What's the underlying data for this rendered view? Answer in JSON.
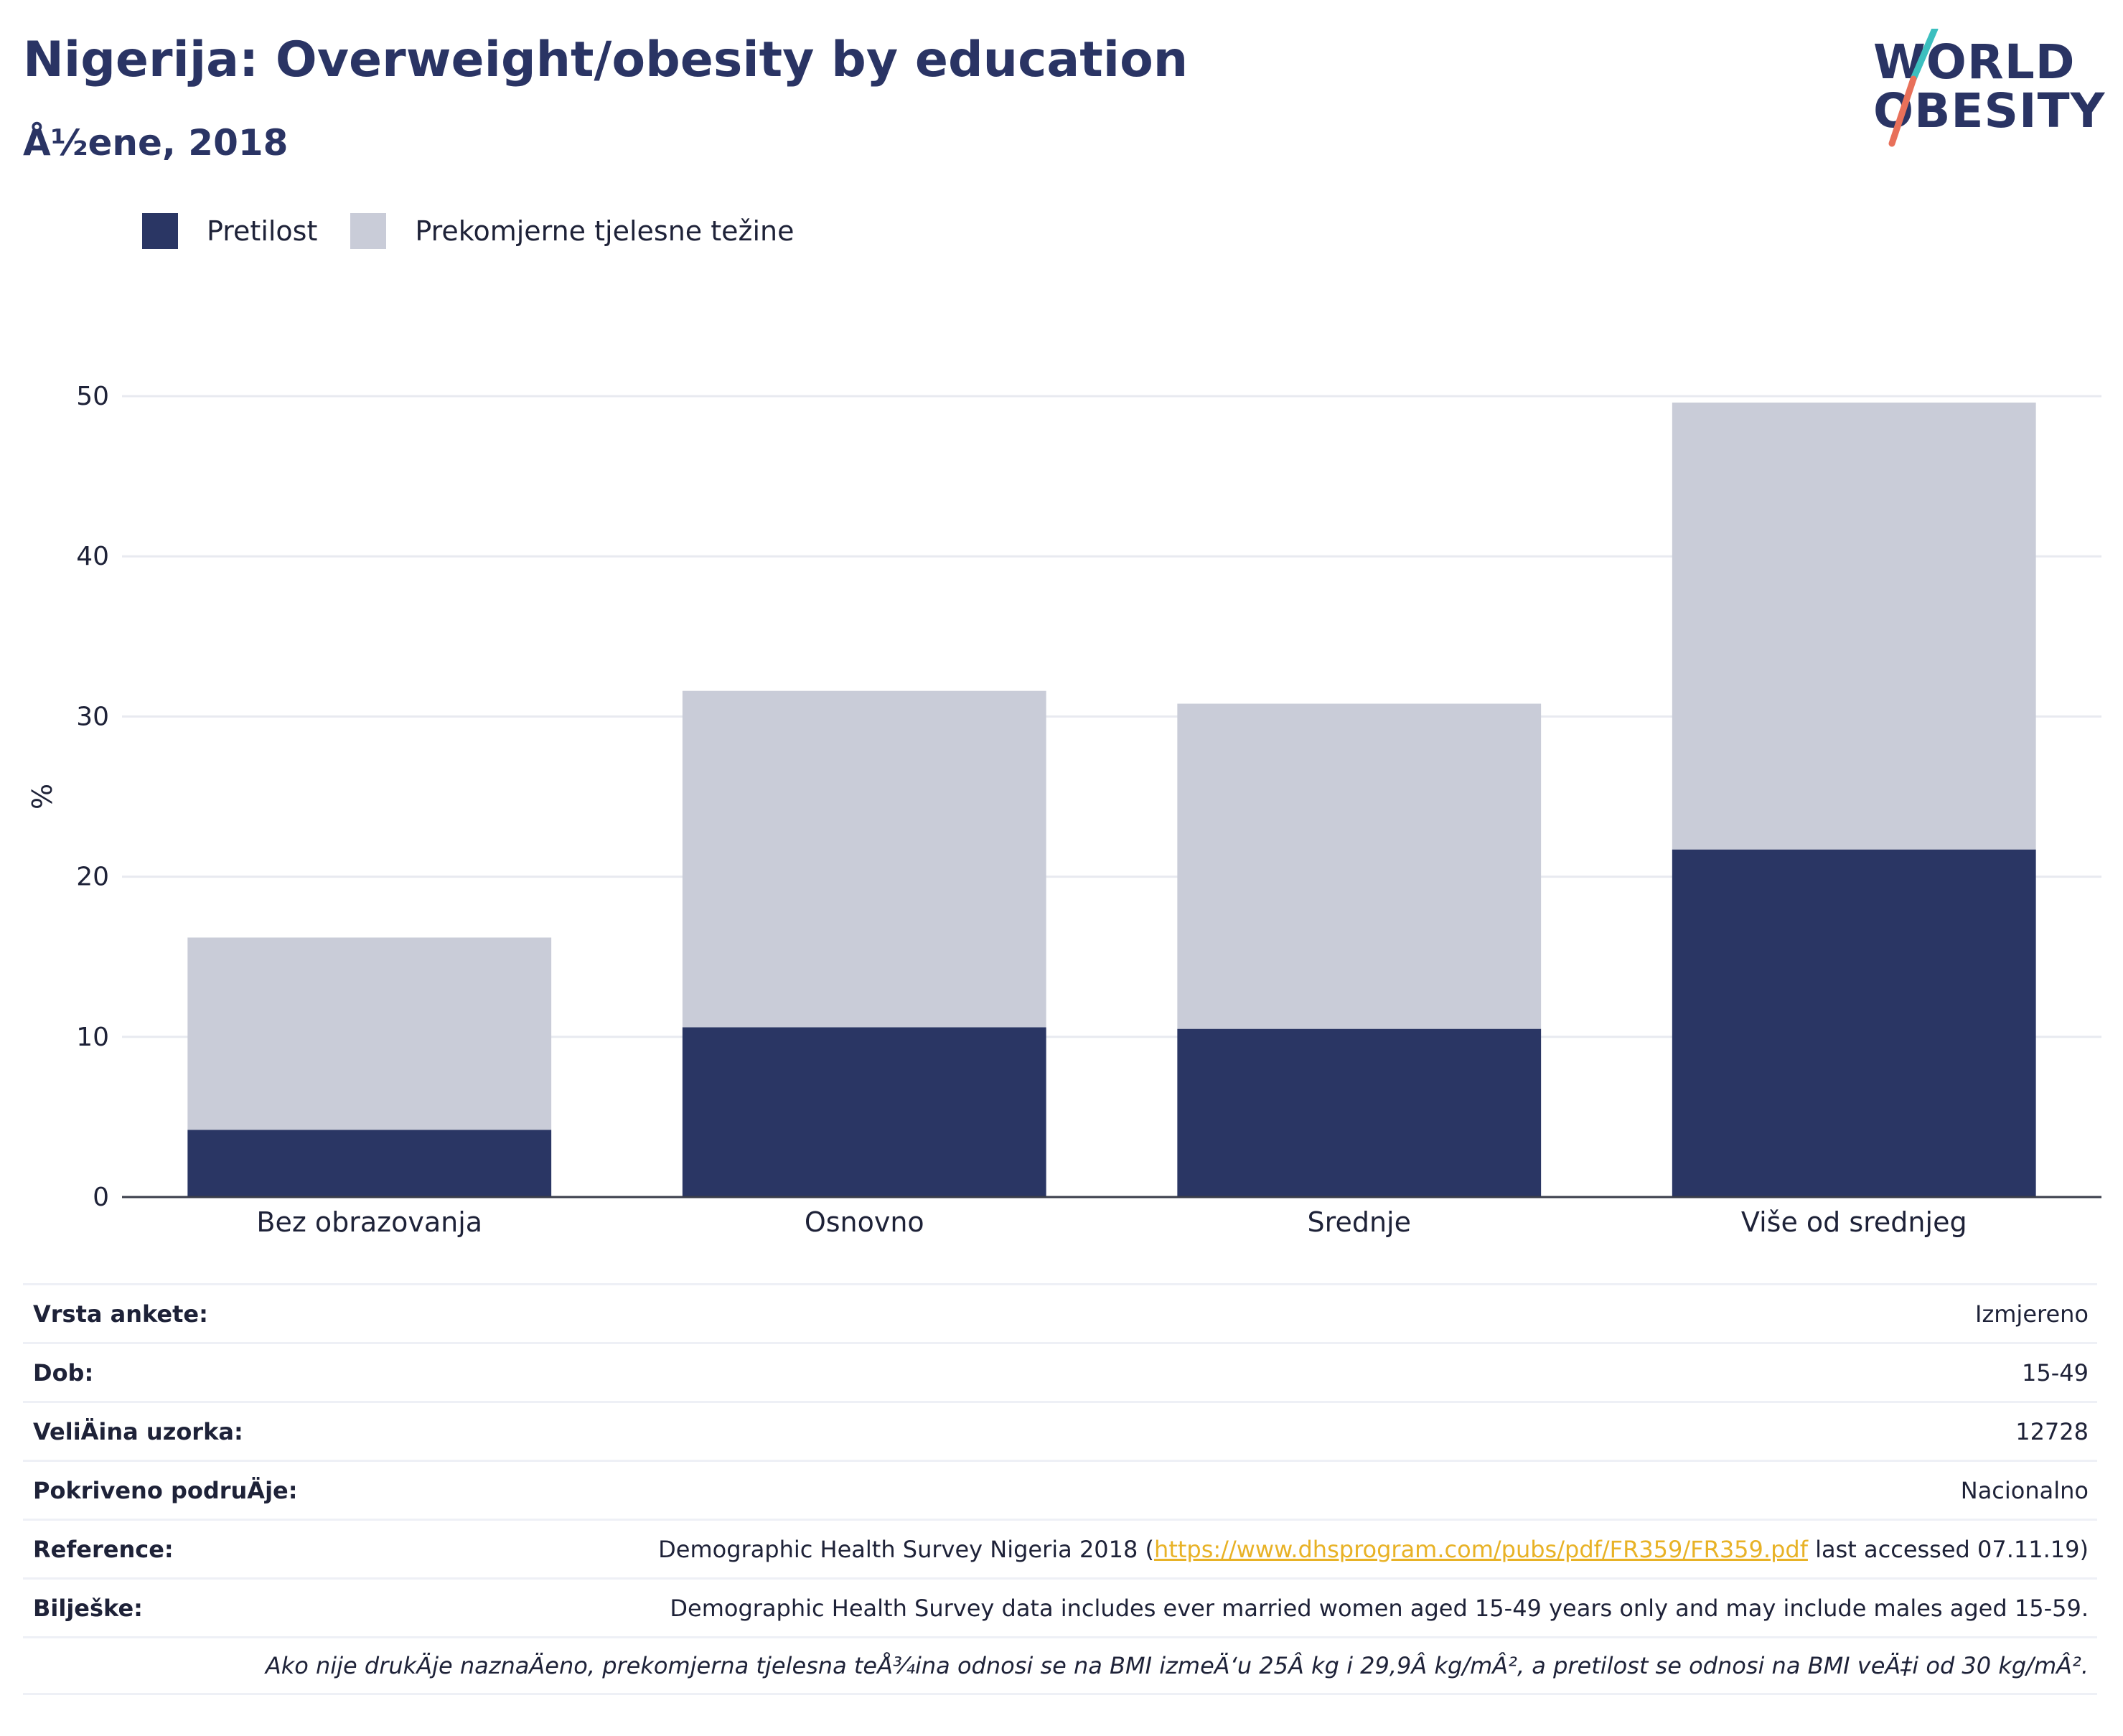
{
  "header": {
    "title": "Nigerija: Overweight/obesity by education",
    "subtitle": "Å½ene, 2018"
  },
  "logo": {
    "line1": "WORLD",
    "line2": "OBESITY",
    "colors": {
      "text": "#2a3464",
      "slash_top": "#3cbfbf",
      "slash_bottom": "#e8705a"
    }
  },
  "legend": [
    {
      "label": "Pretilost",
      "color": "#2a3664"
    },
    {
      "label": "Prekomjerne tjelesne težine",
      "color": "#c9ccd8"
    }
  ],
  "chart_data": {
    "type": "bar",
    "stacked": true,
    "categories": [
      "Bez obrazovanja",
      "Osnovno",
      "Srednje",
      "Više od srednjeg"
    ],
    "series": [
      {
        "name": "Pretilost",
        "values": [
          4.2,
          10.6,
          10.5,
          21.7
        ],
        "color": "#2a3664"
      },
      {
        "name": "Prekomjerne tjelesne težine",
        "values": [
          12.0,
          21.0,
          20.3,
          27.9
        ],
        "color": "#c9ccd8"
      }
    ],
    "ylabel": "%",
    "ylim": [
      0,
      50
    ],
    "yticks": [
      0,
      10,
      20,
      30,
      40,
      50
    ],
    "grid": true
  },
  "info": {
    "rows": [
      {
        "key": "Vrsta ankete:",
        "value": "Izmjereno"
      },
      {
        "key": "Dob:",
        "value": "15-49"
      },
      {
        "key": "VeliÄ\u001fina uzorka:",
        "value": "12728"
      },
      {
        "key": "Pokriveno podruÄ\u001fje:",
        "value": "Nacionalno"
      }
    ],
    "reference": {
      "key": "Reference:",
      "prefix": "Demographic Health Survey Nigeria 2018 (",
      "link": "https://www.dhsprogram.com/pubs/pdf/FR359/FR359.pdf",
      "suffix": " last accessed 07.11.19)"
    },
    "notes": {
      "key": "Bilješke:",
      "value": "Demographic Health Survey data includes ever married women aged 15-49 years only and may include males aged 15-59."
    },
    "footnote": "Ako nije drukÄ\u001fje naznaÄ\u001feno, prekomjerna tjelesna teÅ¾ina odnosi se na BMI izmeÄ‘u 25Â kg i 29,9Â kg/mÂ², a pretilost se odnosi na BMI veÄ‡i od 30 kg/mÂ²."
  }
}
